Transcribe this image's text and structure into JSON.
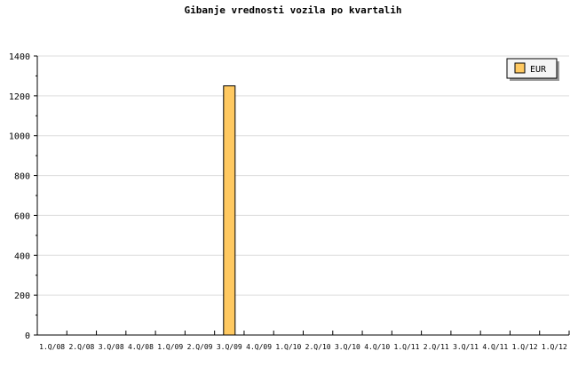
{
  "chart_data": {
    "type": "bar",
    "title": "Gibanje vrednosti vozila po kvartalih",
    "xlabel": "",
    "ylabel": "",
    "categories": [
      "1.Q/08",
      "2.Q/08",
      "3.Q/08",
      "4.Q/08",
      "1.Q/09",
      "2.Q/09",
      "3.Q/09",
      "4.Q/09",
      "1.Q/10",
      "2.Q/10",
      "3.Q/10",
      "4.Q/10",
      "1.Q/11",
      "2.Q/11",
      "3.Q/11",
      "4.Q/11",
      "1.Q/12",
      "1.Q/12"
    ],
    "series": [
      {
        "name": "EUR",
        "values": [
          0,
          0,
          0,
          0,
          0,
          0,
          1250,
          0,
          0,
          0,
          0,
          0,
          0,
          0,
          0,
          0,
          0,
          0
        ],
        "color": "#ffc961"
      }
    ],
    "ylim": [
      0,
      1400
    ],
    "yticks": [
      0,
      200,
      400,
      600,
      800,
      1000,
      1200,
      1400
    ],
    "grid": true,
    "legend": "top-right"
  }
}
